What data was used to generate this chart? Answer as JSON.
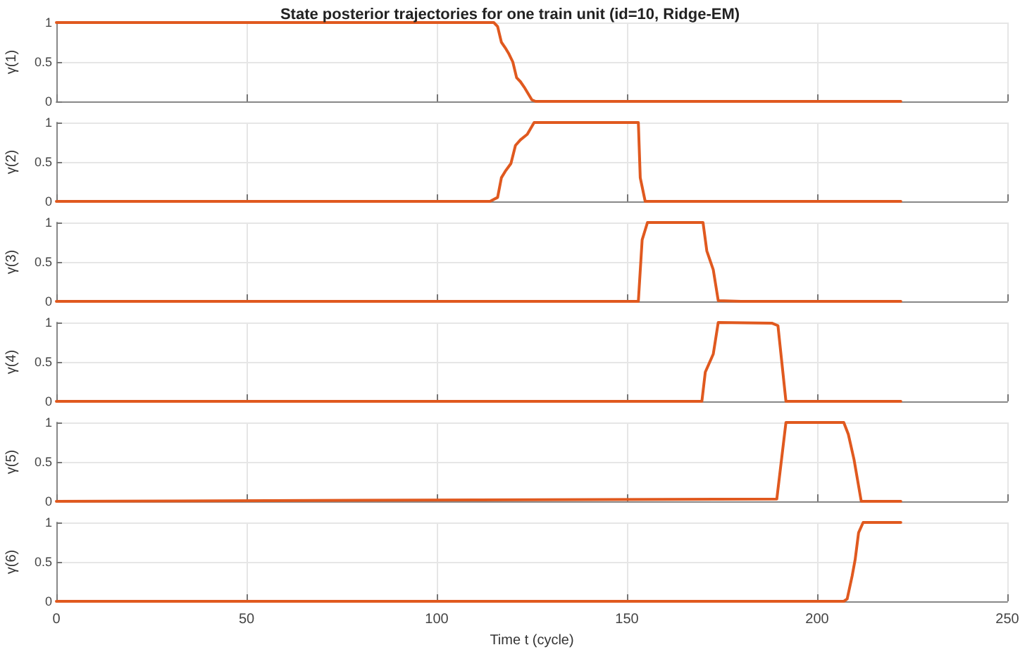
{
  "chart_data": [
    {
      "type": "line",
      "title": "State posterior trajectories for one train unit (id=10, Ridge-EM)",
      "ylabel": "γ(1)",
      "xlim": [
        0,
        250
      ],
      "xticks": [
        0,
        50,
        100,
        150,
        200,
        250
      ],
      "ylim": [
        0,
        1
      ],
      "yticks": [
        0,
        0.5,
        1
      ],
      "grid": true,
      "tick_labels": "y",
      "series": [
        {
          "color": "#e0591f",
          "x": [
            0,
            115,
            116,
            117,
            118,
            119,
            120,
            121,
            122,
            123,
            124,
            125,
            126,
            222
          ],
          "values": [
            1,
            1,
            0.95,
            0.75,
            0.68,
            0.6,
            0.5,
            0.3,
            0.25,
            0.18,
            0.1,
            0.02,
            0,
            0
          ]
        }
      ]
    },
    {
      "type": "line",
      "ylabel": "γ(2)",
      "xlim": [
        0,
        250
      ],
      "xticks": [
        0,
        50,
        100,
        150,
        200,
        250
      ],
      "ylim": [
        0,
        1
      ],
      "yticks": [
        0,
        0.5,
        1
      ],
      "grid": true,
      "tick_labels": "y",
      "series": [
        {
          "color": "#e0591f",
          "x": [
            0,
            114,
            116,
            117,
            118,
            119.5,
            120.7,
            122,
            123.8,
            125.6,
            153,
            153.5,
            154.8,
            222
          ],
          "values": [
            0,
            0,
            0.05,
            0.3,
            0.38,
            0.48,
            0.71,
            0.78,
            0.85,
            1,
            1,
            0.3,
            0,
            0
          ]
        }
      ]
    },
    {
      "type": "line",
      "ylabel": "γ(3)",
      "xlim": [
        0,
        250
      ],
      "xticks": [
        0,
        50,
        100,
        150,
        200,
        250
      ],
      "ylim": [
        0,
        1
      ],
      "yticks": [
        0,
        0.5,
        1
      ],
      "grid": true,
      "tick_labels": "y",
      "series": [
        {
          "color": "#e0591f",
          "x": [
            0,
            153,
            154,
            155.4,
            170,
            171,
            172.7,
            174,
            180,
            222
          ],
          "values": [
            0,
            0,
            0.78,
            1,
            1,
            0.64,
            0.4,
            0.01,
            0,
            0
          ]
        }
      ]
    },
    {
      "type": "line",
      "ylabel": "γ(4)",
      "xlim": [
        0,
        250
      ],
      "xticks": [
        0,
        50,
        100,
        150,
        200,
        250
      ],
      "ylim": [
        0,
        1
      ],
      "yticks": [
        0,
        0.5,
        1
      ],
      "grid": true,
      "tick_labels": "y",
      "series": [
        {
          "color": "#e0591f",
          "x": [
            0,
            169.7,
            170.6,
            172.7,
            174,
            188.2,
            189.7,
            191.8,
            222
          ],
          "values": [
            0,
            0,
            0.37,
            0.6,
            1,
            0.99,
            0.96,
            0,
            0
          ]
        }
      ]
    },
    {
      "type": "line",
      "ylabel": "γ(5)",
      "xlim": [
        0,
        250
      ],
      "xticks": [
        0,
        50,
        100,
        150,
        200,
        250
      ],
      "ylim": [
        0,
        1
      ],
      "yticks": [
        0,
        0.5,
        1
      ],
      "grid": true,
      "tick_labels": "y",
      "series": [
        {
          "color": "#e0591f",
          "x": [
            0,
            189.4,
            191.8,
            207,
            208.2,
            209.7,
            211.6,
            222
          ],
          "values": [
            0,
            0.03,
            1,
            1,
            0.85,
            0.53,
            0,
            0
          ]
        }
      ]
    },
    {
      "type": "line",
      "ylabel": "γ(6)",
      "xlabel": "Time t (cycle)",
      "xlim": [
        0,
        250
      ],
      "xticks": [
        0,
        50,
        100,
        150,
        200,
        250
      ],
      "ylim": [
        0,
        1
      ],
      "yticks": [
        0,
        0.5,
        1
      ],
      "grid": true,
      "series": [
        {
          "color": "#e0591f",
          "x": [
            0,
            207,
            207.9,
            209.2,
            210,
            210.9,
            212.1,
            222
          ],
          "values": [
            0,
            0,
            0.03,
            0.32,
            0.53,
            0.87,
            1,
            1
          ]
        }
      ]
    }
  ]
}
